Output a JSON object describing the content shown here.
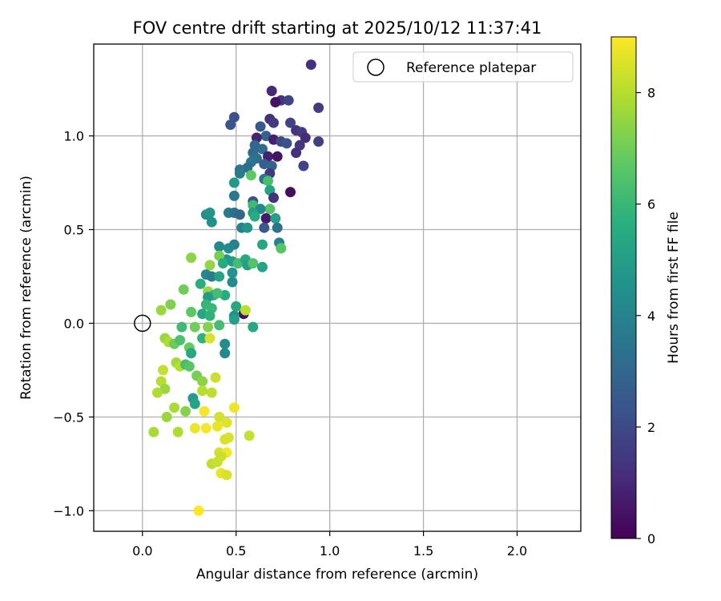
{
  "chart_data": {
    "type": "scatter",
    "title": "FOV centre drift starting at 2025/10/12 11:37:41",
    "xlabel": "Angular distance from reference (arcmin)",
    "ylabel": "Rotation from reference (arcmin)",
    "xlim": [
      -0.26,
      2.34
    ],
    "ylim": [
      -1.11,
      1.49
    ],
    "xticks": [
      0.0,
      0.5,
      1.0,
      1.5,
      2.0
    ],
    "xtick_labels": [
      "0.0",
      "0.5",
      "1.0",
      "1.5",
      "2.0"
    ],
    "yticks": [
      -1.0,
      -0.5,
      0.0,
      0.5,
      1.0
    ],
    "ytick_labels": [
      "−1.0",
      "−0.5",
      "0.0",
      "0.5",
      "1.0"
    ],
    "grid": true,
    "colormap": "viridis",
    "colorbar": {
      "label": "Hours from first FF file",
      "range": [
        0,
        9
      ],
      "ticks": [
        0,
        2,
        4,
        6,
        8
      ],
      "tick_labels": [
        "0",
        "2",
        "4",
        "6",
        "8"
      ]
    },
    "reference_point": {
      "x": 0.0,
      "y": 0.0,
      "label": "Reference platepar"
    },
    "legend": {
      "position": "top-right",
      "entries": [
        "Reference platepar"
      ]
    },
    "series": [
      {
        "points": [
          [
            0.9,
            1.38,
            1.2
          ],
          [
            0.69,
            1.24,
            1.0
          ],
          [
            0.94,
            1.15,
            1.6
          ],
          [
            0.74,
            1.19,
            1.4
          ],
          [
            0.78,
            1.19,
            1.9
          ],
          [
            0.71,
            1.18,
            0.4
          ],
          [
            0.49,
            1.1,
            2.2
          ],
          [
            0.47,
            1.06,
            2.4
          ],
          [
            0.68,
            1.09,
            1.2
          ],
          [
            0.63,
            1.05,
            2.5
          ],
          [
            0.7,
            1.07,
            1.5
          ],
          [
            0.79,
            1.07,
            1.8
          ],
          [
            0.82,
            1.03,
            1.3
          ],
          [
            0.85,
            1.02,
            1.6
          ],
          [
            0.66,
            1.0,
            2.8
          ],
          [
            0.61,
            0.99,
            0.9
          ],
          [
            0.7,
            0.98,
            0.8
          ],
          [
            0.74,
            0.97,
            2.0
          ],
          [
            0.77,
            0.96,
            2.3
          ],
          [
            0.87,
            0.99,
            1.1
          ],
          [
            0.94,
            0.97,
            1.7
          ],
          [
            0.6,
            0.95,
            3.0
          ],
          [
            0.64,
            0.93,
            3.2
          ],
          [
            0.84,
            0.95,
            1.4
          ],
          [
            0.59,
            0.91,
            3.1
          ],
          [
            0.67,
            0.89,
            0.8
          ],
          [
            0.72,
            0.89,
            0.5
          ],
          [
            0.82,
            0.91,
            1.2
          ],
          [
            0.61,
            0.88,
            3.3
          ],
          [
            0.58,
            0.86,
            3.5
          ],
          [
            0.65,
            0.85,
            2.7
          ],
          [
            0.69,
            0.84,
            2.9
          ],
          [
            0.86,
            0.84,
            1.8
          ],
          [
            0.56,
            0.83,
            3.2
          ],
          [
            0.52,
            0.82,
            3.4
          ],
          [
            0.68,
            0.8,
            1.5
          ],
          [
            0.52,
            0.8,
            3.7
          ],
          [
            0.58,
            0.79,
            6.7
          ],
          [
            0.65,
            0.77,
            3.5
          ],
          [
            0.67,
            0.76,
            6.3
          ],
          [
            0.49,
            0.75,
            4.8
          ],
          [
            0.68,
            0.71,
            5.2
          ],
          [
            0.79,
            0.7,
            0.3
          ],
          [
            0.7,
            0.67,
            1.3
          ],
          [
            0.49,
            0.68,
            3.6
          ],
          [
            0.59,
            0.65,
            2.2
          ],
          [
            0.59,
            0.63,
            6.1
          ],
          [
            0.68,
            0.61,
            6.5
          ],
          [
            0.63,
            0.61,
            4.2
          ],
          [
            0.59,
            0.59,
            5.0
          ],
          [
            0.34,
            0.58,
            4.4
          ],
          [
            0.36,
            0.59,
            4.6
          ],
          [
            0.46,
            0.59,
            3.8
          ],
          [
            0.49,
            0.59,
            3.3
          ],
          [
            0.52,
            0.58,
            3.0
          ],
          [
            0.6,
            0.57,
            5.5
          ],
          [
            0.66,
            0.56,
            0.6
          ],
          [
            0.71,
            0.56,
            5.1
          ],
          [
            0.37,
            0.54,
            4.5
          ],
          [
            0.53,
            0.51,
            3.9
          ],
          [
            0.56,
            0.51,
            4.7
          ],
          [
            0.65,
            0.51,
            2.5
          ],
          [
            0.72,
            0.51,
            3.4
          ],
          [
            0.73,
            0.43,
            4.0
          ],
          [
            0.74,
            0.4,
            6.6
          ],
          [
            0.41,
            0.41,
            4.2
          ],
          [
            0.46,
            0.4,
            4.4
          ],
          [
            0.49,
            0.42,
            4.0
          ],
          [
            0.64,
            0.42,
            5.3
          ],
          [
            0.45,
            0.34,
            4.7
          ],
          [
            0.41,
            0.36,
            7.1
          ],
          [
            0.36,
            0.31,
            7.5
          ],
          [
            0.43,
            0.32,
            5.5
          ],
          [
            0.48,
            0.33,
            4.9
          ],
          [
            0.51,
            0.32,
            6.2
          ],
          [
            0.55,
            0.34,
            5.4
          ],
          [
            0.56,
            0.31,
            5.0
          ],
          [
            0.59,
            0.32,
            6.5
          ],
          [
            0.64,
            0.3,
            5.2
          ],
          [
            0.26,
            0.35,
            7.4
          ],
          [
            0.34,
            0.26,
            4.2
          ],
          [
            0.37,
            0.25,
            3.8
          ],
          [
            0.41,
            0.25,
            5.2
          ],
          [
            0.48,
            0.27,
            4.6
          ],
          [
            0.48,
            0.22,
            4.3
          ],
          [
            0.31,
            0.21,
            5.6
          ],
          [
            0.35,
            0.17,
            7.6
          ],
          [
            0.22,
            0.18,
            7.0
          ],
          [
            0.38,
            0.15,
            5.8
          ],
          [
            0.44,
            0.15,
            5.5
          ],
          [
            0.4,
            0.16,
            6.2
          ],
          [
            0.35,
            0.14,
            4.9
          ],
          [
            0.15,
            0.1,
            7.2
          ],
          [
            0.1,
            0.07,
            7.6
          ],
          [
            0.34,
            0.1,
            5.9
          ],
          [
            0.37,
            0.08,
            6.0
          ],
          [
            0.5,
            0.09,
            5.4
          ],
          [
            0.54,
            0.05,
            0.4
          ],
          [
            0.55,
            0.07,
            8.1
          ],
          [
            0.26,
            0.06,
            6.7
          ],
          [
            0.32,
            0.05,
            5.3
          ],
          [
            0.36,
            0.04,
            5.8
          ],
          [
            0.49,
            0.04,
            4.5
          ],
          [
            0.49,
            0.02,
            5.1
          ],
          [
            0.21,
            -0.02,
            6.1
          ],
          [
            0.28,
            -0.02,
            7.0
          ],
          [
            0.35,
            -0.02,
            7.3
          ],
          [
            0.41,
            -0.01,
            6.2
          ],
          [
            0.59,
            -0.02,
            5.4
          ],
          [
            0.12,
            -0.08,
            7.6
          ],
          [
            0.14,
            -0.1,
            7.9
          ],
          [
            0.17,
            -0.11,
            6.9
          ],
          [
            0.2,
            -0.09,
            6.4
          ],
          [
            0.32,
            -0.08,
            5.8
          ],
          [
            0.36,
            -0.08,
            8.5
          ],
          [
            0.25,
            -0.13,
            6.8
          ],
          [
            0.44,
            -0.11,
            4.4
          ],
          [
            0.26,
            -0.16,
            5.3
          ],
          [
            0.44,
            -0.16,
            4.2
          ],
          [
            0.18,
            -0.21,
            7.7
          ],
          [
            0.2,
            -0.23,
            8.0
          ],
          [
            0.23,
            -0.22,
            6.2
          ],
          [
            0.25,
            -0.23,
            6.6
          ],
          [
            0.11,
            -0.25,
            8.2
          ],
          [
            0.29,
            -0.28,
            7.1
          ],
          [
            0.39,
            -0.29,
            8.3
          ],
          [
            0.1,
            -0.31,
            8.0
          ],
          [
            0.12,
            -0.35,
            7.6
          ],
          [
            0.32,
            -0.31,
            7.4
          ],
          [
            0.08,
            -0.37,
            7.9
          ],
          [
            0.37,
            -0.37,
            8.1
          ],
          [
            0.32,
            -0.36,
            8.0
          ],
          [
            0.27,
            -0.4,
            4.9
          ],
          [
            0.28,
            -0.43,
            5.2
          ],
          [
            0.17,
            -0.45,
            7.8
          ],
          [
            0.23,
            -0.47,
            7.3
          ],
          [
            0.33,
            -0.47,
            8.9
          ],
          [
            0.49,
            -0.45,
            8.8
          ],
          [
            0.13,
            -0.5,
            7.6
          ],
          [
            0.41,
            -0.5,
            8.4
          ],
          [
            0.45,
            -0.53,
            8.6
          ],
          [
            0.28,
            -0.56,
            8.8
          ],
          [
            0.34,
            -0.56,
            8.9
          ],
          [
            0.4,
            -0.55,
            8.7
          ],
          [
            0.06,
            -0.58,
            7.8
          ],
          [
            0.19,
            -0.58,
            7.9
          ],
          [
            0.46,
            -0.61,
            8.5
          ],
          [
            0.44,
            -0.62,
            8.5
          ],
          [
            0.57,
            -0.6,
            8.2
          ],
          [
            0.41,
            -0.69,
            8.4
          ],
          [
            0.45,
            -0.69,
            8.9
          ],
          [
            0.42,
            -0.71,
            8.3
          ],
          [
            0.37,
            -0.75,
            8.1
          ],
          [
            0.4,
            -0.74,
            8.3
          ],
          [
            0.42,
            -0.8,
            8.7
          ],
          [
            0.45,
            -0.81,
            8.5
          ],
          [
            0.3,
            -1.0,
            9.0
          ]
        ]
      }
    ]
  }
}
